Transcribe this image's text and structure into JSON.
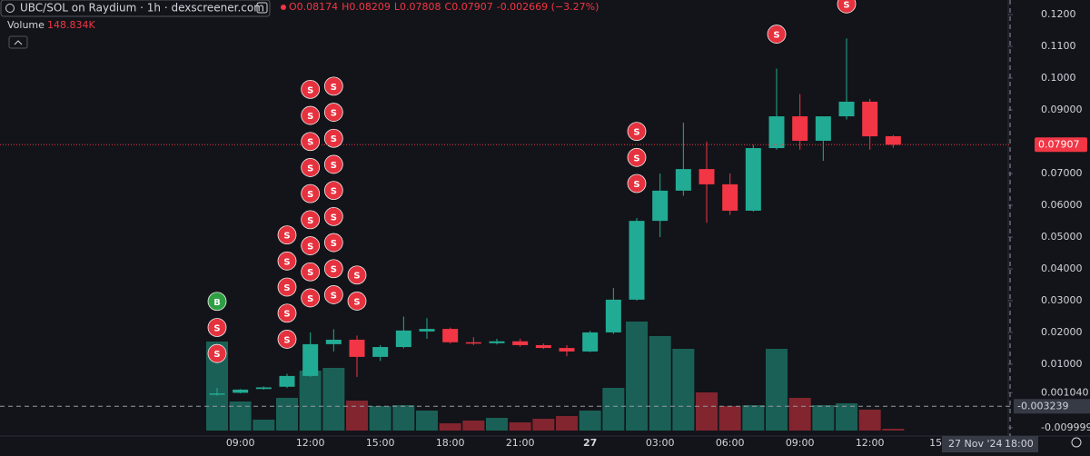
{
  "chart_data": {
    "type": "candlestick",
    "title": "UBC/SOL on Raydium · 1h · dexscreener.com",
    "ohlc_header": [
      "O0.08174",
      "H0.08209",
      "L0.07808",
      "C0.07907",
      "-0.002669 (−3.27%)"
    ],
    "volume_label": "Volume",
    "volume_value": "148.834K",
    "categories": [
      null,
      "09:00",
      null,
      null,
      "12:00",
      null,
      null,
      "15:00",
      null,
      null,
      "18:00",
      null,
      null,
      "21:00",
      null,
      null,
      "27",
      null,
      null,
      "03:00",
      null,
      null,
      "06:00",
      null,
      null,
      "09:00",
      null,
      null,
      "12:00",
      null
    ],
    "x_axis_cut_label": "15:",
    "open": [
      0.0005,
      0.001,
      0.0022,
      0.0029,
      0.0063,
      0.0163,
      0.0177,
      0.0123,
      0.0154,
      0.0203,
      0.0211,
      0.0169,
      0.0166,
      0.0172,
      0.016,
      0.0151,
      0.014,
      0.02,
      0.0303,
      0.0551,
      0.0646,
      0.0714,
      0.0666,
      0.0583,
      0.078,
      0.088,
      0.0803,
      0.088,
      0.0926,
      0.08174
    ],
    "high": [
      0.0025,
      0.0022,
      0.003,
      0.007,
      0.02,
      0.021,
      0.019,
      0.016,
      0.025,
      0.0245,
      0.0215,
      0.0185,
      0.018,
      0.018,
      0.0165,
      0.016,
      0.0205,
      0.034,
      0.056,
      0.07,
      0.086,
      0.08,
      0.07,
      0.079,
      0.103,
      0.095,
      0.088,
      0.1125,
      0.0935,
      0.08209
    ],
    "low": [
      0.0001,
      0.0008,
      0.002,
      0.0025,
      0.006,
      0.014,
      0.006,
      0.011,
      0.015,
      0.018,
      0.0165,
      0.016,
      0.0162,
      0.0155,
      0.0148,
      0.0125,
      0.0138,
      0.0195,
      0.03,
      0.05,
      0.063,
      0.0545,
      0.057,
      0.058,
      0.0775,
      0.0775,
      0.074,
      0.087,
      0.0775,
      0.07808
    ],
    "close": [
      0.0008,
      0.002,
      0.0027,
      0.0063,
      0.0163,
      0.0177,
      0.0123,
      0.0154,
      0.0206,
      0.0211,
      0.0169,
      0.0166,
      0.0172,
      0.016,
      0.0151,
      0.014,
      0.02,
      0.0303,
      0.0551,
      0.0646,
      0.0714,
      0.0666,
      0.0583,
      0.078,
      0.088,
      0.0803,
      0.088,
      0.0926,
      0.0817,
      0.07907
    ],
    "volume": [
      7350,
      2400,
      900,
      2700,
      4950,
      5175,
      2475,
      2025,
      2100,
      1650,
      600,
      825,
      1050,
      675,
      975,
      1200,
      1650,
      3525,
      9000,
      7800,
      6750,
      3150,
      2025,
      2100,
      6750,
      2700,
      2100,
      2250,
      1725,
      148.834
    ],
    "markers": [
      [
        "B",
        "S",
        "S"
      ],
      [],
      [],
      [
        "S",
        "S",
        "S",
        "S",
        "S"
      ],
      [
        "S",
        "S",
        "S",
        "S",
        "S",
        "S",
        "S",
        "S",
        "S"
      ],
      [
        "S",
        "S",
        "S",
        "S",
        "S",
        "S",
        "S",
        "S",
        "S"
      ],
      [
        "S",
        "S"
      ],
      [],
      [],
      [],
      [],
      [],
      [],
      [],
      [],
      [],
      [],
      [],
      [
        "S",
        "S",
        "S"
      ],
      [],
      [],
      [],
      [],
      [],
      [
        "S"
      ],
      [],
      [],
      [
        "S"
      ],
      [],
      []
    ],
    "up_color": "#22ab94",
    "down_color": "#f23645",
    "ylim": [
      -0.0126,
      0.1246
    ],
    "yticks": [
      {
        "value": 0.12,
        "label": "0.1200"
      },
      {
        "value": 0.11,
        "label": "0.1100"
      },
      {
        "value": 0.1,
        "label": "0.1000"
      },
      {
        "value": 0.09,
        "label": "0.09000"
      },
      {
        "value": 0.07,
        "label": "0.07000"
      },
      {
        "value": 0.06,
        "label": "0.06000"
      },
      {
        "value": 0.05,
        "label": "0.05000"
      },
      {
        "value": 0.04,
        "label": "0.04000"
      },
      {
        "value": 0.03,
        "label": "0.03000"
      },
      {
        "value": 0.02,
        "label": "0.02000"
      },
      {
        "value": 0.01,
        "label": "0.01000"
      },
      {
        "value": 0.00104,
        "label": "0.001040"
      },
      -0.009999
    ],
    "last_price": 0.07907,
    "crosshair": {
      "price": -0.003239,
      "date_label": "27 Nov '24",
      "time_label": "18:00"
    }
  }
}
